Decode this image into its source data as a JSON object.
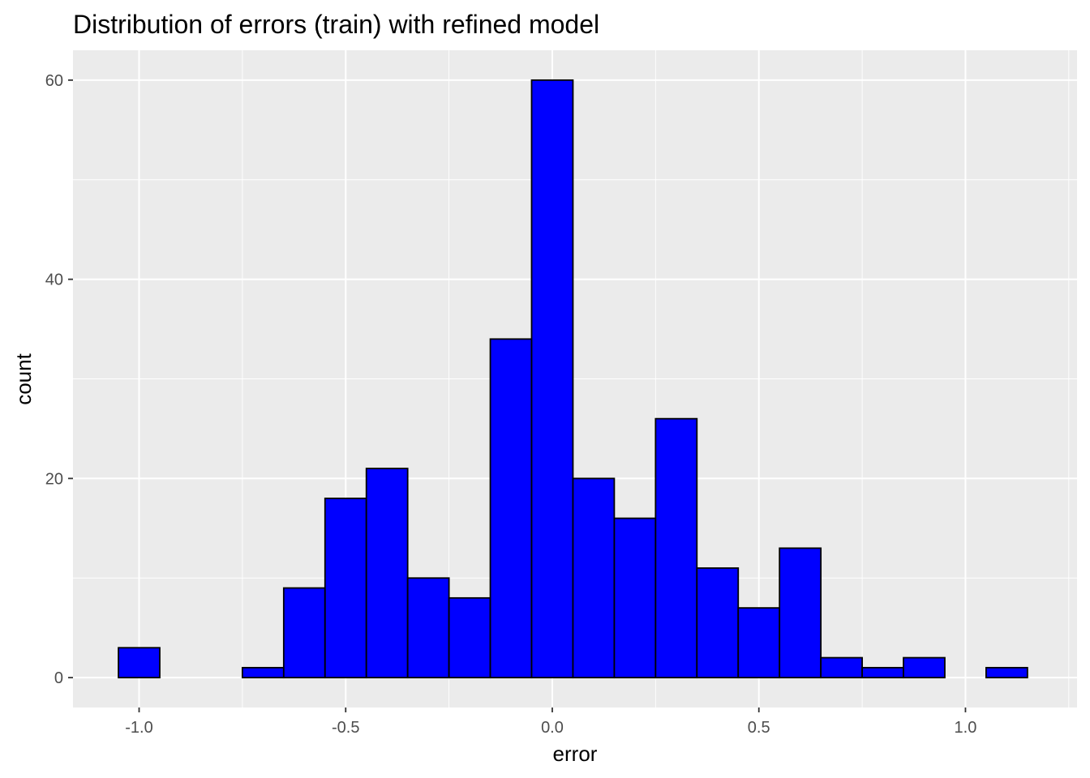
{
  "chart_data": {
    "type": "bar",
    "title": "Distribution of errors (train) with refined model",
    "xlabel": "error",
    "ylabel": "count",
    "xlim": [
      -1.16,
      1.27
    ],
    "ylim": [
      -3,
      63
    ],
    "x_ticks": [
      -1.0,
      -0.5,
      0.0,
      0.5,
      1.0
    ],
    "x_tick_labels": [
      "-1.0",
      "-0.5",
      "0.0",
      "0.5",
      "1.0"
    ],
    "y_ticks": [
      0,
      20,
      40,
      60
    ],
    "y_tick_labels": [
      "0",
      "20",
      "40",
      "60"
    ],
    "bin_width": 0.1,
    "bins": [
      {
        "x0": -1.05,
        "x1": -0.95,
        "count": 3
      },
      {
        "x0": -0.95,
        "x1": -0.85,
        "count": 0
      },
      {
        "x0": -0.85,
        "x1": -0.75,
        "count": 0
      },
      {
        "x0": -0.75,
        "x1": -0.65,
        "count": 1
      },
      {
        "x0": -0.65,
        "x1": -0.55,
        "count": 9
      },
      {
        "x0": -0.55,
        "x1": -0.45,
        "count": 18
      },
      {
        "x0": -0.45,
        "x1": -0.35,
        "count": 21
      },
      {
        "x0": -0.35,
        "x1": -0.25,
        "count": 10
      },
      {
        "x0": -0.25,
        "x1": -0.15,
        "count": 8
      },
      {
        "x0": -0.15,
        "x1": -0.05,
        "count": 34
      },
      {
        "x0": -0.05,
        "x1": 0.05,
        "count": 60
      },
      {
        "x0": 0.05,
        "x1": 0.15,
        "count": 20
      },
      {
        "x0": 0.15,
        "x1": 0.25,
        "count": 16
      },
      {
        "x0": 0.25,
        "x1": 0.35,
        "count": 26
      },
      {
        "x0": 0.35,
        "x1": 0.45,
        "count": 11
      },
      {
        "x0": 0.45,
        "x1": 0.55,
        "count": 7
      },
      {
        "x0": 0.55,
        "x1": 0.65,
        "count": 13
      },
      {
        "x0": 0.65,
        "x1": 0.75,
        "count": 2
      },
      {
        "x0": 0.75,
        "x1": 0.85,
        "count": 1
      },
      {
        "x0": 0.85,
        "x1": 0.95,
        "count": 2
      },
      {
        "x0": 0.95,
        "x1": 1.05,
        "count": 0
      },
      {
        "x0": 1.05,
        "x1": 1.15,
        "count": 1
      }
    ],
    "bar_fill": "#0000ff",
    "bar_outline": "#000000",
    "panel_background": "#ebebeb",
    "grid_color": "#ffffff",
    "grid": true,
    "legend": "none"
  }
}
